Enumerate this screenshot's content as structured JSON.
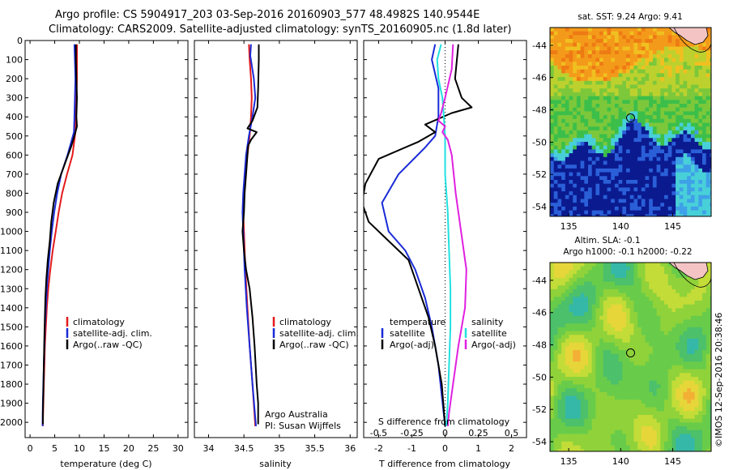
{
  "header": {
    "line1": "Argo profile: CS 5904917_203 03-Sep-2016 20160903_577 48.4982S 140.9544E",
    "line2": "Climatology: CARS2009. Satellite-adjusted climatology: synTS_20160905.nc (1.8d later)"
  },
  "colors": {
    "climatology": "#e31a1c",
    "satellite": "#1a2bd6",
    "argo": "#000000",
    "sat_salinity": "#22e0e0",
    "argo_salinity": "#e020e0"
  },
  "chart_data": [
    {
      "id": "temperature",
      "type": "line",
      "xlabel": "temperature (deg C)",
      "xlim": [
        -1,
        32
      ],
      "ylim": [
        2080,
        0
      ],
      "x_ticks": [
        "0",
        "5",
        "10",
        "15",
        "20",
        "25",
        "30"
      ],
      "y_ticks": [
        "0",
        "100",
        "200",
        "300",
        "400",
        "500",
        "600",
        "700",
        "800",
        "900",
        "1000",
        "1100",
        "1200",
        "1300",
        "1400",
        "1500",
        "1600",
        "1700",
        "1800",
        "1900",
        "2000"
      ],
      "legend": [
        "climatology",
        "satellite-adj. clim.",
        "Argo(..raw -QC)"
      ],
      "series": [
        {
          "name": "climatology",
          "points": [
            [
              9.5,
              20
            ],
            [
              9.5,
              200
            ],
            [
              9.4,
              300
            ],
            [
              9.3,
              400
            ],
            [
              9.2,
              480
            ],
            [
              8.6,
              600
            ],
            [
              7.5,
              700
            ],
            [
              6.5,
              800
            ],
            [
              5.8,
              900
            ],
            [
              5.2,
              1000
            ],
            [
              4.6,
              1100
            ],
            [
              4.1,
              1200
            ],
            [
              3.7,
              1300
            ],
            [
              3.4,
              1400
            ],
            [
              3.2,
              1500
            ],
            [
              3.0,
              1600
            ],
            [
              2.9,
              1700
            ],
            [
              2.8,
              1800
            ],
            [
              2.7,
              1900
            ],
            [
              2.6,
              2020
            ]
          ]
        },
        {
          "name": "satellite-adj. clim.",
          "points": [
            [
              9.0,
              20
            ],
            [
              9.1,
              100
            ],
            [
              9.2,
              200
            ],
            [
              9.1,
              300
            ],
            [
              9.0,
              400
            ],
            [
              8.9,
              480
            ],
            [
              7.6,
              600
            ],
            [
              6.3,
              700
            ],
            [
              5.5,
              800
            ],
            [
              4.9,
              900
            ],
            [
              4.4,
              1000
            ],
            [
              4.0,
              1100
            ],
            [
              3.7,
              1200
            ],
            [
              3.4,
              1300
            ],
            [
              3.2,
              1400
            ],
            [
              3.0,
              1500
            ],
            [
              2.9,
              1600
            ],
            [
              2.8,
              1700
            ],
            [
              2.7,
              1800
            ],
            [
              2.6,
              1900
            ],
            [
              2.55,
              2020
            ]
          ]
        },
        {
          "name": "Argo(..raw -QC)",
          "points": [
            [
              9.3,
              20
            ],
            [
              9.3,
              100
            ],
            [
              9.4,
              200
            ],
            [
              9.5,
              300
            ],
            [
              9.4,
              400
            ],
            [
              9.5,
              450
            ],
            [
              9.2,
              480
            ],
            [
              8.4,
              550
            ],
            [
              7.0,
              650
            ],
            [
              5.6,
              750
            ],
            [
              4.8,
              850
            ],
            [
              4.3,
              950
            ],
            [
              4.0,
              1050
            ],
            [
              3.6,
              1150
            ],
            [
              3.3,
              1250
            ],
            [
              3.1,
              1350
            ],
            [
              3.0,
              1450
            ],
            [
              2.9,
              1550
            ],
            [
              2.8,
              1700
            ],
            [
              2.7,
              1850
            ],
            [
              2.6,
              1950
            ],
            [
              2.6,
              2010
            ]
          ]
        }
      ]
    },
    {
      "id": "salinity",
      "type": "line",
      "xlabel": "salinity",
      "xlim": [
        33.8,
        36.1
      ],
      "ylim": [
        2080,
        0
      ],
      "x_ticks": [
        "34",
        "34.5",
        "35",
        "35.5",
        "36"
      ],
      "legend": [
        "climatology",
        "satellite-adj. clim.",
        "Argo(..raw -QC)"
      ],
      "annotation": [
        "Argo Australia",
        "PI: Susan Wijffels"
      ],
      "series": [
        {
          "name": "climatology",
          "points": [
            [
              34.57,
              20
            ],
            [
              34.58,
              100
            ],
            [
              34.6,
              200
            ],
            [
              34.61,
              300
            ],
            [
              34.6,
              400
            ],
            [
              34.58,
              500
            ],
            [
              34.55,
              600
            ],
            [
              34.52,
              700
            ],
            [
              34.5,
              800
            ],
            [
              34.49,
              900
            ],
            [
              34.5,
              1000
            ],
            [
              34.52,
              1200
            ],
            [
              34.55,
              1400
            ],
            [
              34.58,
              1600
            ],
            [
              34.62,
              1800
            ],
            [
              34.66,
              2020
            ]
          ]
        },
        {
          "name": "satellite-adj. clim.",
          "points": [
            [
              34.6,
              20
            ],
            [
              34.59,
              80
            ],
            [
              34.64,
              200
            ],
            [
              34.66,
              300
            ],
            [
              34.62,
              400
            ],
            [
              34.57,
              500
            ],
            [
              34.53,
              600
            ],
            [
              34.51,
              700
            ],
            [
              34.49,
              800
            ],
            [
              34.48,
              900
            ],
            [
              34.49,
              1000
            ],
            [
              34.51,
              1200
            ],
            [
              34.54,
              1400
            ],
            [
              34.58,
              1600
            ],
            [
              34.62,
              1800
            ],
            [
              34.67,
              2020
            ]
          ]
        },
        {
          "name": "Argo(..raw -QC)",
          "points": [
            [
              34.71,
              20
            ],
            [
              34.71,
              100
            ],
            [
              34.7,
              250
            ],
            [
              34.69,
              350
            ],
            [
              34.62,
              420
            ],
            [
              34.55,
              460
            ],
            [
              34.68,
              480
            ],
            [
              34.6,
              520
            ],
            [
              34.56,
              550
            ],
            [
              34.55,
              600
            ],
            [
              34.53,
              700
            ],
            [
              34.51,
              800
            ],
            [
              34.5,
              900
            ],
            [
              34.48,
              1000
            ],
            [
              34.5,
              1100
            ],
            [
              34.53,
              1200
            ],
            [
              34.58,
              1300
            ],
            [
              34.62,
              1450
            ],
            [
              34.65,
              1600
            ],
            [
              34.68,
              1800
            ],
            [
              34.7,
              1900
            ],
            [
              34.7,
              2010
            ]
          ]
        }
      ]
    },
    {
      "id": "difference",
      "type": "line",
      "xlabel": "T difference from climatology",
      "xlabel_top": "S difference from climatology",
      "xlim": [
        -2.45,
        2.45
      ],
      "ylim": [
        2080,
        0
      ],
      "x_ticks": [
        "-2",
        "-1",
        "0",
        "1",
        "2"
      ],
      "x_ticks_top": [
        "-0.5",
        "-0.25",
        "0",
        "0.25",
        "0.5"
      ],
      "legend_temperature": {
        "heading": "temperature",
        "items": [
          "satellite",
          "Argo(-adj)"
        ]
      },
      "legend_salinity": {
        "heading": "salinity",
        "items": [
          "satellite",
          "Argo(-adj)"
        ]
      },
      "series": [
        {
          "name": "satellite",
          "points": [
            [
              -0.3,
              20
            ],
            [
              -0.4,
              100
            ],
            [
              -0.2,
              250
            ],
            [
              -0.2,
              400
            ],
            [
              -0.3,
              500
            ],
            [
              -0.6,
              560
            ],
            [
              -1.4,
              700
            ],
            [
              -1.9,
              850
            ],
            [
              -1.7,
              1000
            ],
            [
              -1.2,
              1100
            ],
            [
              -0.9,
              1200
            ],
            [
              -0.6,
              1350
            ],
            [
              -0.4,
              1500
            ],
            [
              -0.2,
              1700
            ],
            [
              0.0,
              2020
            ]
          ]
        },
        {
          "name": "Argo(-adj)",
          "points": [
            [
              0.4,
              20
            ],
            [
              0.3,
              200
            ],
            [
              0.5,
              300
            ],
            [
              0.8,
              350
            ],
            [
              0.2,
              380
            ],
            [
              -0.6,
              440
            ],
            [
              -0.3,
              480
            ],
            [
              -0.8,
              530
            ],
            [
              -2.0,
              620
            ],
            [
              -2.4,
              750
            ],
            [
              -2.5,
              850
            ],
            [
              -2.3,
              950
            ],
            [
              -1.7,
              1050
            ],
            [
              -1.1,
              1150
            ],
            [
              -0.8,
              1300
            ],
            [
              -0.5,
              1450
            ],
            [
              -0.3,
              1600
            ],
            [
              -0.1,
              1800
            ],
            [
              0.0,
              2020
            ]
          ]
        },
        {
          "name": "salinity satellite",
          "points": [
            [
              -0.03,
              20
            ],
            [
              -0.06,
              100
            ],
            [
              -0.05,
              200
            ],
            [
              -0.02,
              300
            ],
            [
              -0.01,
              400
            ],
            [
              0.0,
              500
            ],
            [
              0.0,
              700
            ],
            [
              0.02,
              900
            ],
            [
              0.03,
              1100
            ],
            [
              0.04,
              1300
            ],
            [
              0.04,
              1500
            ],
            [
              0.03,
              1700
            ],
            [
              0.02,
              1900
            ],
            [
              0.01,
              2020
            ]
          ]
        },
        {
          "name": "salinity Argo(-adj)",
          "points": [
            [
              0.06,
              20
            ],
            [
              0.05,
              150
            ],
            [
              0.0,
              300
            ],
            [
              -0.03,
              380
            ],
            [
              -0.05,
              420
            ],
            [
              0.0,
              450
            ],
            [
              -0.02,
              480
            ],
            [
              0.02,
              520
            ],
            [
              0.05,
              600
            ],
            [
              0.08,
              800
            ],
            [
              0.12,
              1000
            ],
            [
              0.16,
              1200
            ],
            [
              0.15,
              1400
            ],
            [
              0.1,
              1600
            ],
            [
              0.06,
              1800
            ],
            [
              0.03,
              1950
            ],
            [
              0.02,
              2020
            ]
          ]
        }
      ]
    }
  ],
  "maps": {
    "sst": {
      "title": "sat. SST: 9.24  Argo: 9.41",
      "lon_ticks": [
        "135",
        "140",
        "145"
      ],
      "lat_ticks": [
        "-44",
        "-46",
        "-48",
        "-50",
        "-52",
        "-54"
      ],
      "float_lon": 140.95,
      "float_lat": -48.5
    },
    "sla": {
      "title_line1": "Altim. SLA: -0.1",
      "title_line2": "Argo h1000: -0.1 h2000: -0.22",
      "lon_ticks": [
        "135",
        "140",
        "145"
      ],
      "lat_ticks": [
        "-44",
        "-46",
        "-48",
        "-50",
        "-52",
        "-54"
      ],
      "float_lon": 140.95,
      "float_lat": -48.5
    },
    "stamp": "©IMOS 12-Sep-2016 20:38:46"
  }
}
